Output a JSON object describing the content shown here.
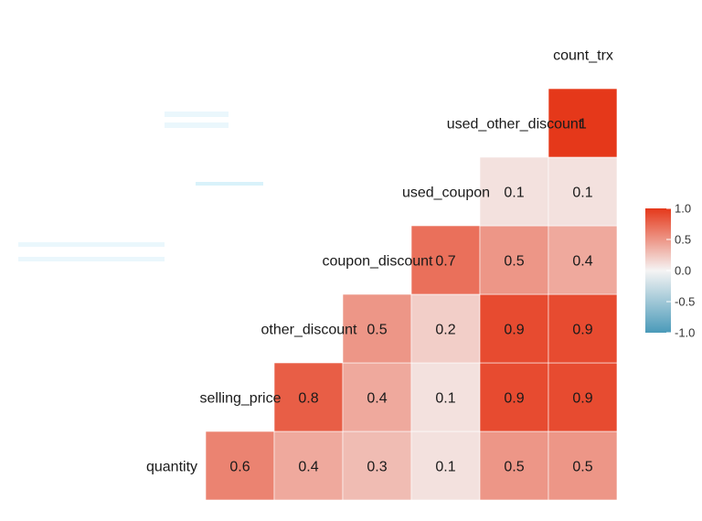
{
  "chart_data": {
    "type": "heatmap",
    "variables": [
      "quantity",
      "selling_price",
      "other_discount",
      "coupon_discount",
      "used_coupon",
      "used_other_discount",
      "count_trx"
    ],
    "rows": [
      {
        "label": "quantity",
        "values": [
          0.6,
          0.4,
          0.3,
          0.1,
          0.5,
          0.5
        ]
      },
      {
        "label": "selling_price",
        "values": [
          0.8,
          0.4,
          0.1,
          0.9,
          0.9
        ]
      },
      {
        "label": "other_discount",
        "values": [
          0.5,
          0.2,
          0.9,
          0.9
        ]
      },
      {
        "label": "coupon_discount",
        "values": [
          0.7,
          0.5,
          0.4
        ]
      },
      {
        "label": "used_coupon",
        "values": [
          0.1,
          0.1
        ]
      },
      {
        "label": "used_other_discount",
        "values": [
          1
        ]
      },
      {
        "label": "count_trx",
        "values": []
      }
    ],
    "legend": {
      "ticks": [
        "1.0",
        "0.5",
        "0.0",
        "-0.5",
        "-1.0"
      ],
      "range": [
        -1,
        1
      ],
      "placement": "right"
    },
    "colors": {
      "low": "#4a9ab9",
      "mid": "#f5f4f4",
      "high": "#e5381a"
    },
    "grid": false
  }
}
